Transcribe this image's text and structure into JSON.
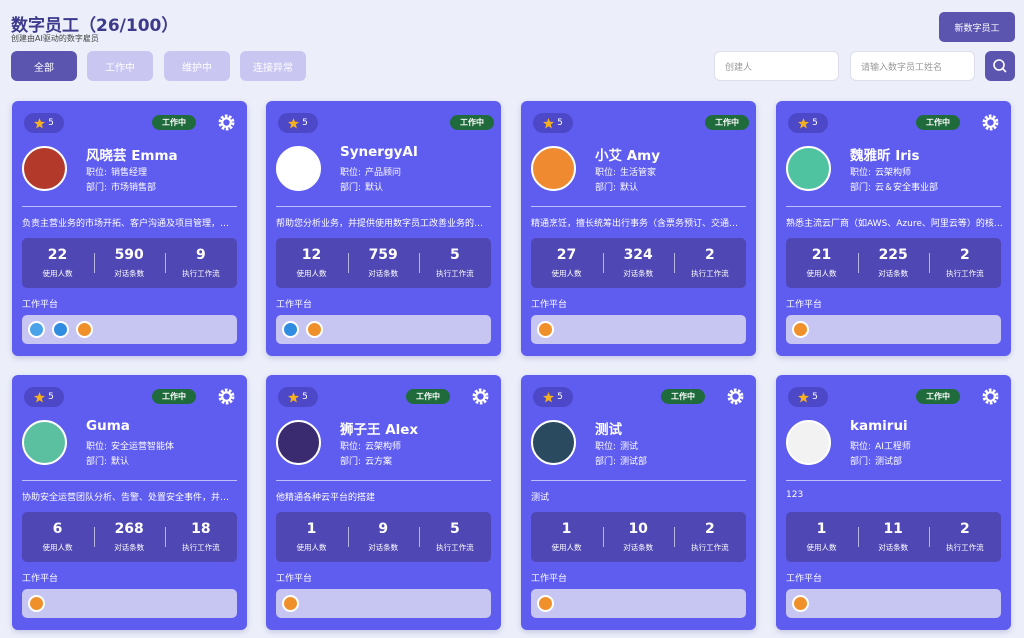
{
  "header": {
    "title": "数字员工（26/100）",
    "subtitle": "创建由AI驱动的数字雇员",
    "new_button": "新数字员工"
  },
  "tabs": [
    "全部",
    "工作中",
    "维护中",
    "连接异常"
  ],
  "filters": {
    "creator_placeholder": "创建人",
    "search_placeholder": "请输入数字员工姓名"
  },
  "labels": {
    "position": "职位:",
    "department": "部门:",
    "users": "使用人数",
    "chats": "对话条数",
    "workflows": "执行工作流",
    "platform": "工作平台"
  },
  "cards": [
    {
      "rating": 5,
      "status": "工作中",
      "name": "风晓芸 Emma",
      "position": "销售经理",
      "department": "市场销售部",
      "description": "负责主营业务的市场开拓、客户沟通及项目管理，…",
      "users": 22,
      "chats": 590,
      "workflows": 9
    },
    {
      "rating": 5,
      "status": "工作中",
      "name": "SynergyAI",
      "position": "产品顾问",
      "department": "默认",
      "description": "帮助您分析业务，并提供使用数字员工改善业务的…",
      "users": 12,
      "chats": 759,
      "workflows": 5
    },
    {
      "rating": 5,
      "status": "工作中",
      "name": "小艾 Amy",
      "position": "生活管家",
      "department": "默认",
      "description": "精通烹饪，擅长统筹出行事务（含票务预订、交通…",
      "users": 27,
      "chats": 324,
      "workflows": 2
    },
    {
      "rating": 5,
      "status": "工作中",
      "name": "魏雅昕 Iris",
      "position": "云架构师",
      "department": "云＆安全事业部",
      "description": "熟悉主流云厂商（如AWS、Azure、阿里云等）的核…",
      "users": 21,
      "chats": 225,
      "workflows": 2
    },
    {
      "rating": 5,
      "status": "工作中",
      "name": "Guma",
      "position": "安全运营智能体",
      "department": "默认",
      "description": "协助安全运营团队分析、告警、处置安全事件，并…",
      "users": 6,
      "chats": 268,
      "workflows": 18
    },
    {
      "rating": 5,
      "status": "工作中",
      "name": "狮子王 Alex",
      "position": "云架构师",
      "department": "云方案",
      "description": "他精通各种云平台的搭建",
      "users": 1,
      "chats": 9,
      "workflows": 5
    },
    {
      "rating": 5,
      "status": "工作中",
      "name": "测试",
      "position": "测试",
      "department": "测试部",
      "description": "测试",
      "users": 1,
      "chats": 10,
      "workflows": 2
    },
    {
      "rating": 5,
      "status": "工作中",
      "name": "kamirui",
      "position": "AI工程师",
      "department": "测试部",
      "description": "123",
      "users": 1,
      "chats": 11,
      "workflows": 2
    }
  ]
}
